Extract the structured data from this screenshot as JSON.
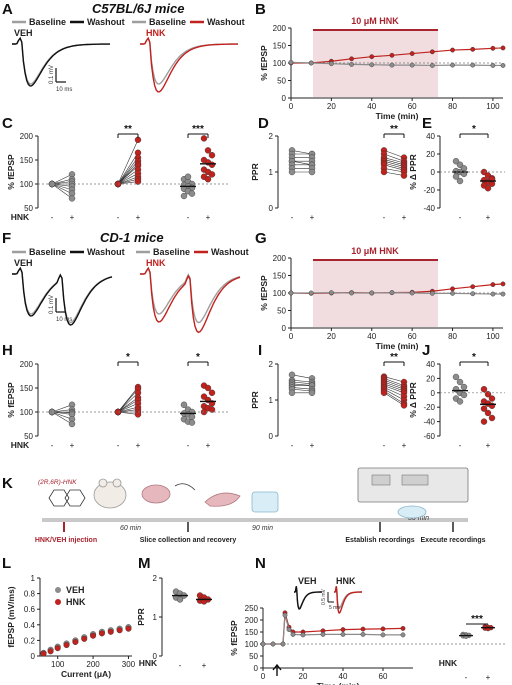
{
  "colors": {
    "veh": "#8c8c8c",
    "hnk": "#c0221e",
    "washout_veh": "#111111",
    "baseline": "#9e9e9e",
    "shade": "#f1dde0",
    "bar": "#a8242f"
  },
  "panel_labels": {
    "A": "A",
    "B": "B",
    "C": "C",
    "D": "D",
    "E": "E",
    "F": "F",
    "G": "G",
    "H": "H",
    "I": "I",
    "J": "J",
    "K": "K",
    "L": "L",
    "M": "M",
    "N": "N"
  },
  "titles": {
    "c57": "C57BL/6J mice",
    "cd1": "CD-1 mice"
  },
  "legend": {
    "baseline": "Baseline",
    "washout": "Washout",
    "veh": "VEH",
    "hnk": "HNK"
  },
  "scale": {
    "mv": "0.1 mV",
    "ms": "10 ms",
    "mv_small": "0.5 mV",
    "ms_small": "5 ms"
  },
  "drug_bar": "10 μM HNK",
  "axis": {
    "fepsp": "% fEPSP",
    "time": "Time (min)",
    "ppr": "PPR",
    "dppr": "% Δ PPR",
    "hnk": "HNK",
    "io_y": "fEPSP (mV/ms)",
    "io_x": "Current (μA)"
  },
  "ticks": {
    "minus": "-",
    "plus": "+"
  },
  "sig": {
    "C1": "**",
    "C2": "***",
    "D": "**",
    "E": "*",
    "H1": "*",
    "H2": "*",
    "I": "**",
    "J": "*",
    "N": "***"
  },
  "schematic": {
    "compound": "(2R,6R)-HNK",
    "injection": "HNK/VEH injection",
    "slice": "Slice collection and recovery",
    "establish": "Establish recordings",
    "execute": "Execute recordings",
    "t60": "60 min",
    "t90": "90 min",
    "t30": "30 min"
  },
  "chart_data": [
    {
      "panel": "B",
      "type": "line",
      "xlabel": "Time (min)",
      "ylabel": "% fEPSP",
      "xlim": [
        0,
        105
      ],
      "ylim": [
        0,
        200
      ],
      "xticks": [
        0,
        20,
        40,
        60,
        80,
        100
      ],
      "yticks": [
        0,
        50,
        100,
        150,
        200
      ],
      "drug_window": [
        10,
        70
      ],
      "series": [
        {
          "name": "HNK",
          "x": [
            0,
            10,
            20,
            30,
            40,
            50,
            60,
            70,
            80,
            90,
            100,
            105
          ],
          "y": [
            100,
            100,
            105,
            112,
            118,
            122,
            127,
            132,
            137,
            139,
            142,
            143
          ]
        },
        {
          "name": "VEH",
          "x": [
            0,
            10,
            20,
            30,
            40,
            50,
            60,
            70,
            80,
            90,
            100,
            105
          ],
          "y": [
            102,
            100,
            98,
            96,
            95,
            94,
            94,
            93,
            94,
            94,
            93,
            93
          ]
        }
      ]
    },
    {
      "panel": "C",
      "type": "scatter",
      "ylabel": "% fEPSP",
      "ylim": [
        50,
        200
      ],
      "yticks": [
        50,
        100,
        150,
        200
      ],
      "groups": [
        {
          "name": "VEH pre",
          "values": [
            100,
            100,
            100,
            100,
            100,
            100,
            100,
            100
          ]
        },
        {
          "name": "VEH post",
          "values": [
            120,
            110,
            105,
            100,
            95,
            88,
            80,
            70
          ]
        },
        {
          "name": "HNK pre",
          "values": [
            100,
            100,
            100,
            100,
            100,
            100,
            100,
            100,
            100,
            100,
            100
          ]
        },
        {
          "name": "HNK post",
          "values": [
            192,
            165,
            155,
            148,
            142,
            138,
            130,
            122,
            115,
            110,
            105
          ]
        },
        {
          "name": "VEH",
          "mean": 95,
          "values": [
            110,
            105,
            100,
            98,
            95,
            92,
            90,
            85,
            80,
            75,
            115
          ]
        },
        {
          "name": "HNK",
          "mean": 142,
          "values": [
            195,
            170,
            160,
            150,
            145,
            140,
            130,
            125,
            120,
            115,
            110
          ]
        }
      ]
    },
    {
      "panel": "D",
      "type": "scatter",
      "ylabel": "PPR",
      "ylim": [
        0,
        2
      ],
      "yticks": [
        0,
        1,
        2
      ],
      "groups": [
        {
          "name": "VEH pre",
          "values": [
            1.6,
            1.5,
            1.4,
            1.3,
            1.3,
            1.2,
            1.1,
            1.0
          ]
        },
        {
          "name": "VEH post",
          "values": [
            1.5,
            1.5,
            1.4,
            1.3,
            1.2,
            1.2,
            1.1,
            1.0
          ]
        },
        {
          "name": "HNK pre",
          "values": [
            1.6,
            1.5,
            1.4,
            1.35,
            1.3,
            1.25,
            1.2,
            1.1,
            1.0
          ]
        },
        {
          "name": "HNK post",
          "values": [
            1.4,
            1.3,
            1.25,
            1.2,
            1.15,
            1.1,
            1.05,
            1.0,
            0.9
          ]
        }
      ]
    },
    {
      "panel": "E",
      "type": "scatter",
      "ylabel": "% Δ PPR",
      "ylim": [
        -40,
        40
      ],
      "yticks": [
        -40,
        -20,
        0,
        20,
        40
      ],
      "groups": [
        {
          "name": "VEH",
          "mean": 0,
          "values": [
            12,
            8,
            4,
            1,
            0,
            -2,
            -5,
            -10
          ]
        },
        {
          "name": "HNK",
          "mean": -10,
          "values": [
            0,
            -4,
            -7,
            -9,
            -11,
            -13,
            -15,
            -18,
            -8
          ]
        }
      ]
    },
    {
      "panel": "G",
      "type": "line",
      "xlabel": "Time (min)",
      "ylabel": "% fEPSP",
      "xlim": [
        0,
        105
      ],
      "ylim": [
        0,
        200
      ],
      "xticks": [
        0,
        20,
        40,
        60,
        80,
        100
      ],
      "yticks": [
        0,
        50,
        100,
        150,
        200
      ],
      "drug_window": [
        10,
        70
      ],
      "series": [
        {
          "name": "HNK",
          "x": [
            0,
            10,
            20,
            30,
            40,
            50,
            60,
            70,
            80,
            90,
            100,
            105
          ],
          "y": [
            100,
            99,
            100,
            101,
            100,
            101,
            102,
            105,
            112,
            118,
            124,
            126
          ]
        },
        {
          "name": "VEH",
          "x": [
            0,
            10,
            20,
            30,
            40,
            50,
            60,
            70,
            80,
            90,
            100,
            105
          ],
          "y": [
            100,
            100,
            101,
            100,
            100,
            101,
            100,
            99,
            99,
            98,
            97,
            97
          ]
        }
      ]
    },
    {
      "panel": "H",
      "type": "scatter",
      "ylabel": "% fEPSP",
      "ylim": [
        50,
        200
      ],
      "yticks": [
        50,
        100,
        150,
        200
      ],
      "groups": [
        {
          "name": "VEH pre",
          "values": [
            100,
            100,
            100,
            100,
            100,
            100,
            100
          ]
        },
        {
          "name": "VEH post",
          "values": [
            115,
            105,
            100,
            98,
            95,
            85,
            75
          ]
        },
        {
          "name": "HNK pre",
          "values": [
            100,
            100,
            100,
            100,
            100,
            100,
            100,
            100,
            100,
            100
          ]
        },
        {
          "name": "HNK post",
          "values": [
            152,
            148,
            140,
            130,
            125,
            118,
            110,
            105,
            100,
            95
          ]
        },
        {
          "name": "VEH",
          "mean": 97,
          "values": [
            115,
            105,
            100,
            97,
            95,
            90,
            85,
            80,
            78
          ]
        },
        {
          "name": "HNK",
          "mean": 122,
          "values": [
            155,
            150,
            140,
            132,
            125,
            118,
            112,
            108,
            105,
            100
          ]
        }
      ]
    },
    {
      "panel": "I",
      "type": "scatter",
      "ylabel": "PPR",
      "ylim": [
        0,
        2
      ],
      "yticks": [
        0,
        1,
        2
      ],
      "groups": [
        {
          "name": "VEH pre",
          "values": [
            1.7,
            1.55,
            1.5,
            1.45,
            1.4,
            1.35,
            1.3,
            1.2
          ]
        },
        {
          "name": "VEH post",
          "values": [
            1.6,
            1.5,
            1.45,
            1.4,
            1.4,
            1.3,
            1.25,
            1.2
          ]
        },
        {
          "name": "HNK pre",
          "values": [
            1.65,
            1.6,
            1.55,
            1.5,
            1.45,
            1.4,
            1.35,
            1.3,
            1.25,
            1.2
          ]
        },
        {
          "name": "HNK post",
          "values": [
            1.5,
            1.4,
            1.35,
            1.3,
            1.25,
            1.2,
            1.1,
            1.0,
            0.9,
            0.85
          ]
        }
      ]
    },
    {
      "panel": "J",
      "type": "scatter",
      "ylabel": "% Δ PPR",
      "ylim": [
        -60,
        40
      ],
      "yticks": [
        -60,
        -40,
        -20,
        0,
        20,
        40
      ],
      "groups": [
        {
          "name": "VEH",
          "mean": 3,
          "values": [
            22,
            15,
            8,
            5,
            0,
            -3,
            -8,
            -12
          ]
        },
        {
          "name": "HNK",
          "mean": -16,
          "values": [
            5,
            -2,
            -8,
            -12,
            -15,
            -18,
            -22,
            -28,
            -35,
            -40
          ]
        }
      ]
    },
    {
      "panel": "L",
      "type": "line",
      "xlabel": "Current (μA)",
      "ylabel": "fEPSP (mV/ms)",
      "xlim": [
        50,
        310
      ],
      "ylim": [
        0,
        1
      ],
      "xticks": [
        100,
        200,
        300
      ],
      "yticks": [
        0,
        0.2,
        0.4,
        0.6,
        0.8,
        1.0
      ],
      "series": [
        {
          "name": "VEH",
          "x": [
            60,
            80,
            100,
            125,
            150,
            175,
            200,
            225,
            250,
            275,
            300
          ],
          "y": [
            0.04,
            0.08,
            0.12,
            0.16,
            0.2,
            0.24,
            0.28,
            0.31,
            0.33,
            0.35,
            0.37
          ]
        },
        {
          "name": "HNK",
          "x": [
            60,
            80,
            100,
            125,
            150,
            175,
            200,
            225,
            250,
            275,
            300
          ],
          "y": [
            0.03,
            0.06,
            0.1,
            0.14,
            0.18,
            0.22,
            0.26,
            0.29,
            0.31,
            0.33,
            0.35
          ]
        }
      ]
    },
    {
      "panel": "M",
      "type": "scatter",
      "ylabel": "PPR",
      "ylim": [
        0,
        2
      ],
      "yticks": [
        0,
        1,
        2
      ],
      "groups": [
        {
          "name": "VEH",
          "mean": 1.55,
          "values": [
            1.65,
            1.6,
            1.55,
            1.5,
            1.45
          ]
        },
        {
          "name": "HNK",
          "mean": 1.45,
          "values": [
            1.55,
            1.5,
            1.45,
            1.42,
            1.4
          ]
        }
      ]
    },
    {
      "panel": "N",
      "type": "line",
      "xlabel": "Time (min)",
      "ylabel": "% fEPSP",
      "xlim": [
        0,
        75
      ],
      "ylim": [
        0,
        250
      ],
      "xticks": [
        0,
        20,
        40,
        60
      ],
      "yticks": [
        0,
        50,
        100,
        150,
        200,
        250
      ],
      "series": [
        {
          "name": "HNK",
          "x": [
            0,
            5,
            10,
            11,
            13,
            15,
            20,
            30,
            40,
            50,
            60,
            70
          ],
          "y": [
            100,
            100,
            100,
            230,
            170,
            150,
            150,
            155,
            160,
            162,
            163,
            165
          ]
        },
        {
          "name": "VEH",
          "x": [
            0,
            5,
            10,
            11,
            13,
            15,
            20,
            30,
            40,
            50,
            60,
            70
          ],
          "y": [
            100,
            100,
            100,
            220,
            160,
            140,
            138,
            140,
            140,
            140,
            138,
            138
          ]
        }
      ]
    },
    {
      "panel": "N-summary",
      "type": "scatter",
      "xlabel": "HNK",
      "ylim": [
        0,
        250
      ],
      "groups": [
        {
          "name": "VEH",
          "mean": 135,
          "values": [
            140,
            138,
            136,
            134,
            132
          ]
        },
        {
          "name": "HNK",
          "mean": 168,
          "values": [
            172,
            170,
            168,
            166,
            164
          ]
        }
      ]
    }
  ]
}
